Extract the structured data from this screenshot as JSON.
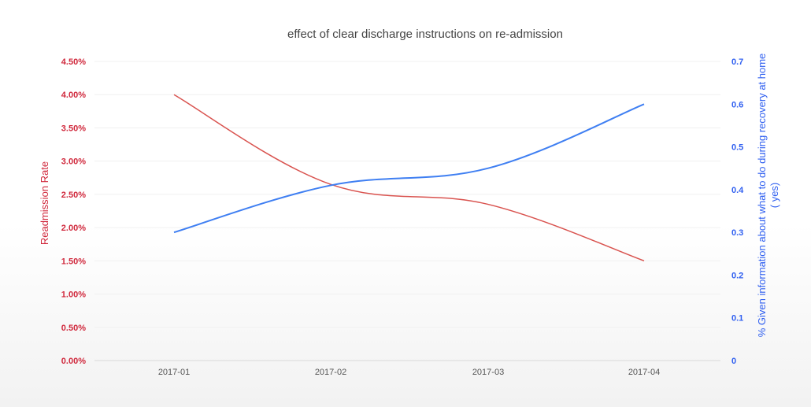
{
  "chart_data": {
    "type": "line",
    "title": "effect of clear discharge instructions on re-admission",
    "categories": [
      "2017-01",
      "2017-02",
      "2017-03",
      "2017-04"
    ],
    "y_left": {
      "label": "Readmission Rate",
      "ticks": [
        "0.00%",
        "0.50%",
        "1.00%",
        "1.50%",
        "2.00%",
        "2.50%",
        "3.00%",
        "3.50%",
        "4.00%",
        "4.50%"
      ],
      "range": [
        0,
        4.5
      ],
      "color": "#d0283c"
    },
    "y_right": {
      "label_line1": "% Given information about what to do during recovery at home",
      "label_line2": "( yes)",
      "ticks": [
        "0",
        "0.1",
        "0.2",
        "0.3",
        "0.4",
        "0.5",
        "0.6",
        "0.7"
      ],
      "range": [
        0,
        0.7
      ],
      "color": "#2f5ff0"
    },
    "series": [
      {
        "axis": "left",
        "color": "#d9534f",
        "values": [
          4.0,
          2.65,
          2.35,
          1.5
        ]
      },
      {
        "axis": "right",
        "color": "#3f7ff2",
        "values": [
          0.3,
          0.41,
          0.45,
          0.6
        ]
      }
    ],
    "grid": true,
    "smooth": true
  }
}
